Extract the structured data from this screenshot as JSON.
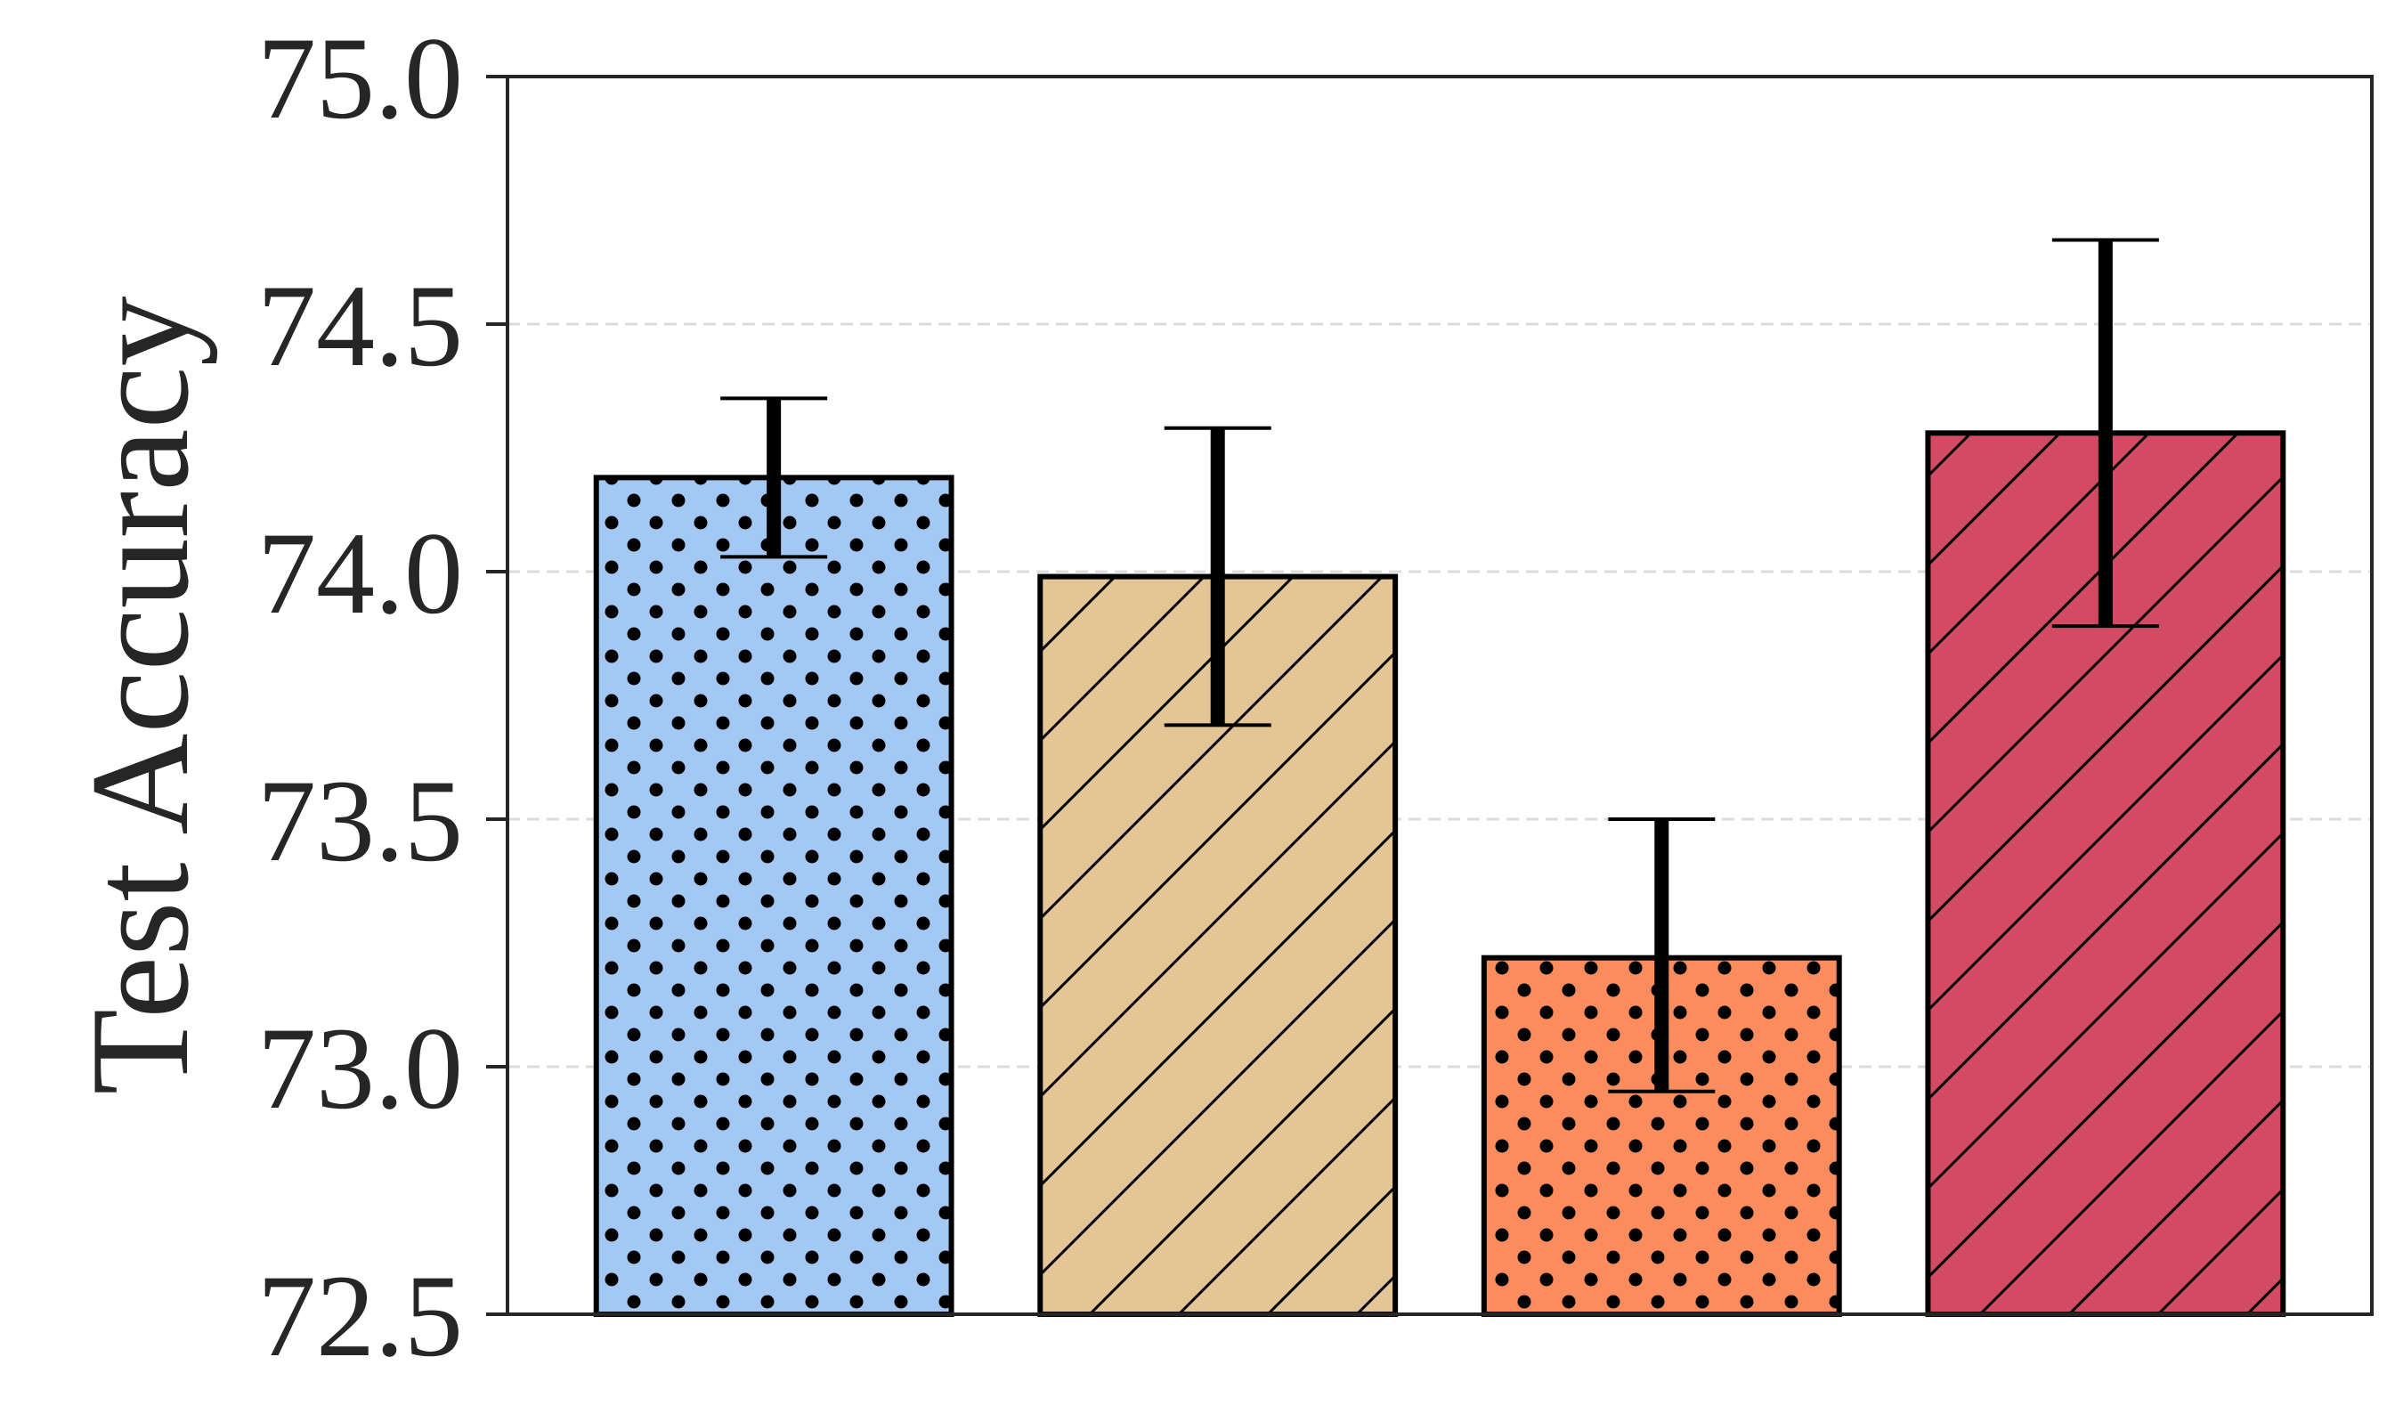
{
  "chart_data": {
    "type": "bar",
    "title": "",
    "xlabel": "",
    "ylabel": "Test Accuracy",
    "ylim": [
      72.5,
      75.0
    ],
    "yticks": [
      72.5,
      73.0,
      73.5,
      74.0,
      74.5,
      75.0
    ],
    "ytick_labels": [
      "72.5",
      "73.0",
      "73.5",
      "74.0",
      "74.5",
      "75.0"
    ],
    "grid": "horizontal dashed",
    "legend": "none",
    "bars": [
      {
        "value": 74.19,
        "err_low": 74.03,
        "err_high": 74.35,
        "color": "#A3C8F3",
        "hatch": "dots"
      },
      {
        "value": 73.99,
        "err_low": 73.69,
        "err_high": 74.29,
        "color": "#E4C595",
        "hatch": "diagonal"
      },
      {
        "value": 73.22,
        "err_low": 72.95,
        "err_high": 73.5,
        "color": "#FB8C5E",
        "hatch": "dots"
      },
      {
        "value": 74.28,
        "err_low": 73.89,
        "err_high": 74.67,
        "color": "#D24B62",
        "hatch": "diagonal"
      }
    ]
  }
}
